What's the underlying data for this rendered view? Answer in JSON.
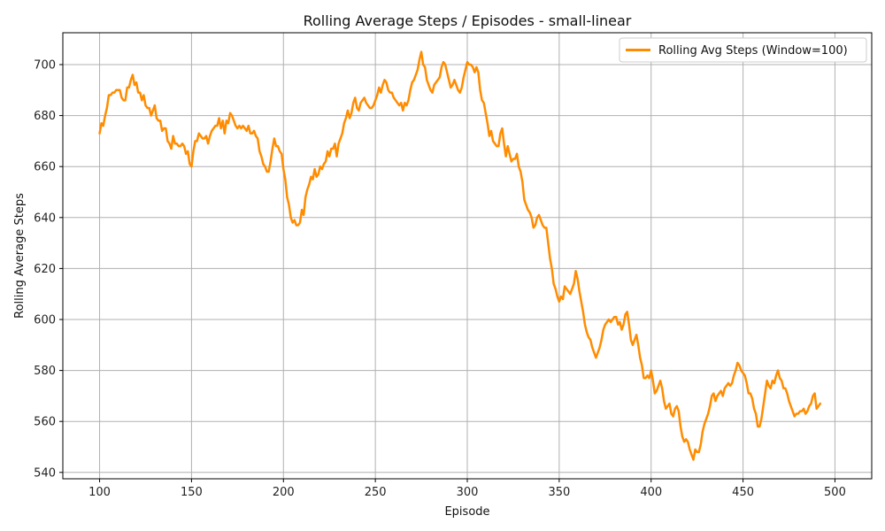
{
  "chart_data": {
    "type": "line",
    "title": "Rolling Average Steps / Episodes - small-linear",
    "xlabel": "Episode",
    "ylabel": "Rolling Average Steps",
    "xlim": [
      80,
      520
    ],
    "ylim": [
      537.5,
      712.5
    ],
    "x_ticks": [
      100,
      150,
      200,
      250,
      300,
      350,
      400,
      450,
      500
    ],
    "y_ticks": [
      540,
      560,
      580,
      600,
      620,
      640,
      660,
      680,
      700
    ],
    "grid": true,
    "legend_position": "top-right",
    "series": [
      {
        "name": "Rolling Avg Steps (Window=100)",
        "color": "#ff8c00",
        "x_start": 100,
        "x_step": 1,
        "values": [
          673,
          677,
          676,
          680,
          683,
          688,
          688,
          689,
          689,
          690,
          690,
          690,
          687,
          686,
          686,
          691,
          691,
          694,
          696,
          692,
          693,
          689,
          689,
          686,
          688,
          684,
          683,
          683,
          680,
          682,
          684,
          679,
          678,
          678,
          674,
          675,
          675,
          670,
          669,
          667,
          672,
          669,
          669,
          668,
          668,
          669,
          668,
          665,
          666,
          661,
          660,
          666,
          670,
          670,
          673,
          672,
          671,
          671,
          672,
          669,
          672,
          674,
          675,
          676,
          676,
          679,
          675,
          678,
          673,
          678,
          677,
          681,
          680,
          678,
          676,
          675,
          676,
          675,
          676,
          675,
          674,
          676,
          673,
          673,
          674,
          672,
          671,
          666,
          664,
          661,
          660,
          658,
          658,
          662,
          667,
          671,
          668,
          668,
          666,
          665,
          659,
          655,
          648,
          645,
          640,
          638,
          639,
          637,
          637,
          638,
          643,
          641,
          648,
          651,
          653,
          656,
          655,
          659,
          656,
          657,
          660,
          659,
          661,
          662,
          666,
          664,
          667,
          667,
          669,
          664,
          669,
          671,
          673,
          677,
          679,
          682,
          679,
          681,
          685,
          687,
          683,
          682,
          685,
          686,
          687,
          685,
          684,
          683,
          683,
          684,
          686,
          688,
          691,
          689,
          692,
          694,
          693,
          690,
          689,
          689,
          687,
          686,
          685,
          684,
          685,
          682,
          685,
          684,
          686,
          690,
          693,
          694,
          696,
          698,
          702,
          705,
          700,
          699,
          694,
          692,
          690,
          689,
          692,
          693,
          694,
          695,
          699,
          701,
          700,
          697,
          694,
          691,
          692,
          694,
          692,
          690,
          689,
          691,
          695,
          698,
          701,
          700,
          700,
          699,
          697,
          699,
          697,
          690,
          686,
          685,
          681,
          677,
          672,
          674,
          670,
          669,
          668,
          668,
          673,
          675,
          669,
          664,
          668,
          665,
          662,
          663,
          663,
          665,
          660,
          658,
          654,
          647,
          645,
          643,
          642,
          640,
          636,
          637,
          640,
          641,
          639,
          637,
          636,
          636,
          630,
          624,
          620,
          614,
          612,
          609,
          607,
          609,
          608,
          613,
          612,
          611,
          610,
          612,
          614,
          619,
          616,
          611,
          607,
          603,
          598,
          595,
          593,
          592,
          589,
          587,
          585,
          587,
          589,
          592,
          596,
          598,
          599,
          600,
          599,
          600,
          601,
          601,
          598,
          599,
          596,
          598,
          602,
          603,
          598,
          592,
          590,
          592,
          594,
          590,
          585,
          582,
          577,
          577,
          578,
          577,
          580,
          576,
          571,
          572,
          574,
          576,
          573,
          568,
          565,
          566,
          567,
          563,
          562,
          565,
          566,
          564,
          558,
          554,
          552,
          553,
          552,
          549,
          547,
          545,
          549,
          548,
          548,
          551,
          556,
          559,
          561,
          563,
          566,
          570,
          571,
          568,
          570,
          571,
          572,
          570,
          573,
          574,
          575,
          574,
          575,
          578,
          580,
          583,
          582,
          580,
          579,
          578,
          575,
          571,
          571,
          569,
          565,
          563,
          558,
          558,
          561,
          566,
          571,
          576,
          574,
          573,
          576,
          575,
          578,
          580,
          577,
          576,
          573,
          573,
          571,
          568,
          566,
          564,
          562,
          563,
          563,
          564,
          564,
          565,
          563,
          564,
          566,
          567,
          570,
          571,
          565,
          566,
          567
        ]
      }
    ]
  }
}
